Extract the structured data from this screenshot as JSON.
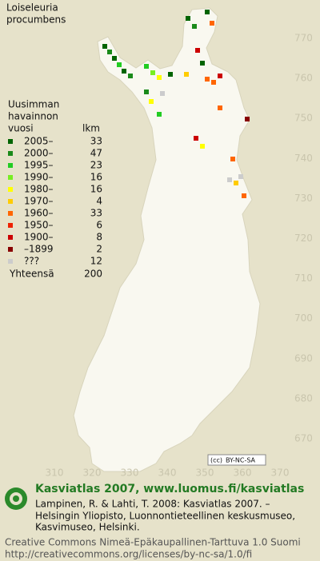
{
  "title": [
    "Loiseleuria",
    "procumbens"
  ],
  "legend": {
    "heading": [
      "Uusimman",
      "havainnon"
    ],
    "col_year": "vuosi",
    "col_count": "lkm",
    "rows": [
      {
        "label": "2005–",
        "count": 33,
        "color": "#006400"
      },
      {
        "label": "2000–",
        "count": 47,
        "color": "#1a8a1a"
      },
      {
        "label": "1995–",
        "count": 23,
        "color": "#22cc22"
      },
      {
        "label": "1990–",
        "count": 16,
        "color": "#77ee22"
      },
      {
        "label": "1980–",
        "count": 16,
        "color": "#ffff00"
      },
      {
        "label": "1970–",
        "count": 4,
        "color": "#ffcc00"
      },
      {
        "label": "1960–",
        "count": 33,
        "color": "#ff6600"
      },
      {
        "label": "1950–",
        "count": 6,
        "color": "#ee2200"
      },
      {
        "label": "1900–",
        "count": 8,
        "color": "#cc0000"
      },
      {
        "label": "–1899",
        "count": 2,
        "color": "#880000"
      },
      {
        "label": "???",
        "count": 12,
        "color": "#cccccc"
      }
    ],
    "total_label": "Yhteensä",
    "total": 200
  },
  "axes": {
    "y_ticks": [
      770,
      760,
      750,
      740,
      730,
      720,
      710,
      700,
      690,
      680,
      670
    ],
    "x_ticks": [
      310,
      320,
      330,
      340,
      350,
      360,
      370
    ]
  },
  "badge": "BY-NC-SA",
  "footer": {
    "heading": "Kasviatlas 2007, www.luomus.fi/kasviatlas",
    "citation": [
      "Lampinen, R. & Lahti, T. 2008: Kasviatlas 2007. –",
      "Helsingin Yliopisto, Luonnontieteellinen keskusmuseo,",
      "Kasvimuseo, Helsinki."
    ],
    "license": [
      "Creative Commons Nimeä-Epäkaupallinen-Tarttuva 1.0 Suomi",
      "http://creativecommons.org/licenses/by-nc-sa/1.0/fi"
    ]
  }
}
